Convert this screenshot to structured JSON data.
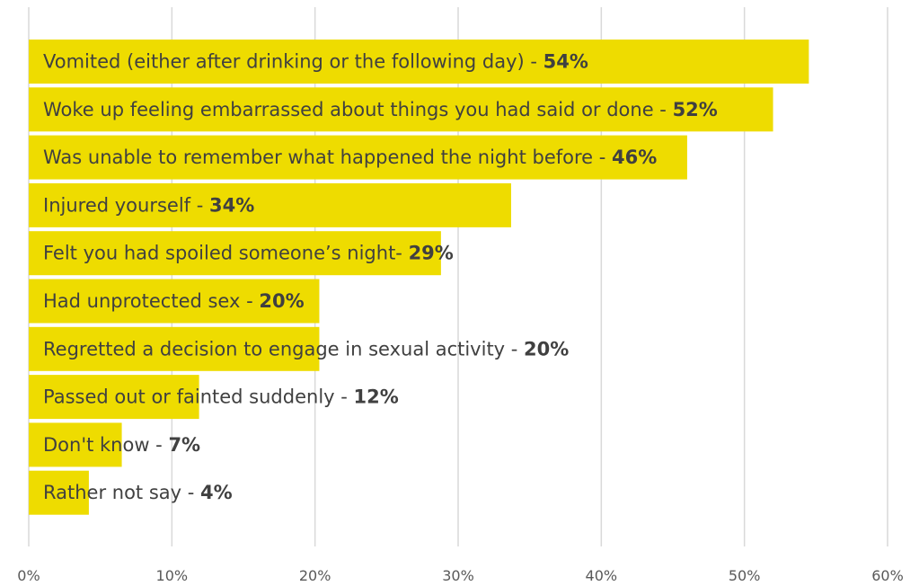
{
  "chart_data": {
    "type": "bar",
    "orientation": "horizontal",
    "categories": [
      "Vomited (either after drinking or the following day)",
      "Woke up feeling embarrassed about things you had said or done",
      "Was unable to remember what happened the night before",
      "Injured yourself",
      "Felt you had spoiled someone’s night",
      "Had unprotected sex",
      "Regretted a decision to engage in sexual activity",
      "Passed out or fainted suddenly",
      "Don't know",
      "Rather not say"
    ],
    "values": [
      54.5,
      52,
      46,
      33.7,
      28.8,
      20.3,
      20.3,
      11.9,
      6.5,
      4.2
    ],
    "labels": [
      {
        "text": "Vomited (either after drinking or the following day) - ",
        "pct": "54%"
      },
      {
        "text": "Woke up feeling embarrassed about things you had said or done - ",
        "pct": "52%"
      },
      {
        "text": "Was unable to remember what happened the night before - ",
        "pct": "46%"
      },
      {
        "text": "Injured yourself - ",
        "pct": "34%"
      },
      {
        "text": "Felt you had spoiled someone’s night- ",
        "pct": "29%"
      },
      {
        "text": "Had unprotected sex - ",
        "pct": "20%"
      },
      {
        "text": "Regretted a decision to engage in sexual activity - ",
        "pct": "20%"
      },
      {
        "text": "Passed out or fainted suddenly - ",
        "pct": "12%"
      },
      {
        "text": "Don't know - ",
        "pct": "7%"
      },
      {
        "text": "Rather not say - ",
        "pct": "4%"
      }
    ],
    "x_ticks": [
      "0%",
      "10%",
      "20%",
      "30%",
      "40%",
      "50%",
      "60%"
    ],
    "xlim": [
      0,
      60
    ],
    "grid": true,
    "colors": {
      "bar": "#EEDC00",
      "grid": "#d9d9d9",
      "text": "#404040",
      "tick": "#595959"
    }
  }
}
